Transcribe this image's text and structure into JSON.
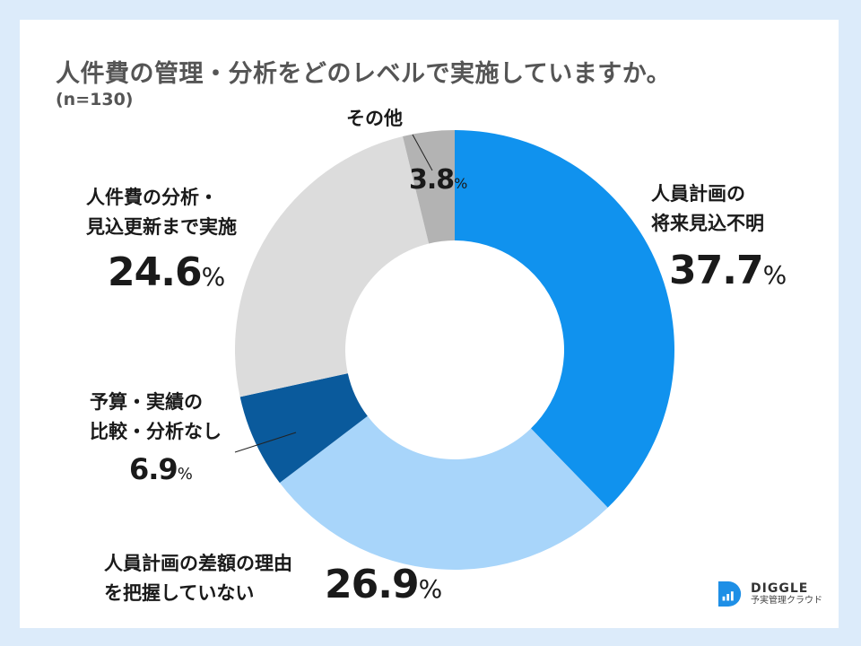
{
  "chart_data": {
    "type": "pie",
    "variant": "donut",
    "title": "人件費の管理・分析をどのレベルで実施していますか。",
    "subtitle": "(n=130)",
    "start": "12 o'clock",
    "direction": "clockwise",
    "slices": [
      {
        "label_lines": [
          "人員計画の",
          "将来見込不明"
        ],
        "value": 37.7,
        "color": "#1092ee"
      },
      {
        "label_lines": [
          "人員計画の差額の理由",
          "を把握していない"
        ],
        "value": 26.9,
        "color": "#a8d5fa"
      },
      {
        "label_lines": [
          "予算・実績の",
          "比較・分析なし"
        ],
        "value": 6.9,
        "color": "#0a5a9c"
      },
      {
        "label_lines": [
          "人件費の分析・",
          "見込更新まで実施"
        ],
        "value": 24.6,
        "color": "#dcdcdc"
      },
      {
        "label_lines": [
          "その他"
        ],
        "value": 3.8,
        "color": "#b3b3b3"
      }
    ],
    "percent_symbol": "%"
  },
  "brand": {
    "name": "DIGGLE",
    "tagline": "予実管理クラウド",
    "color": "#1e8fe6"
  }
}
